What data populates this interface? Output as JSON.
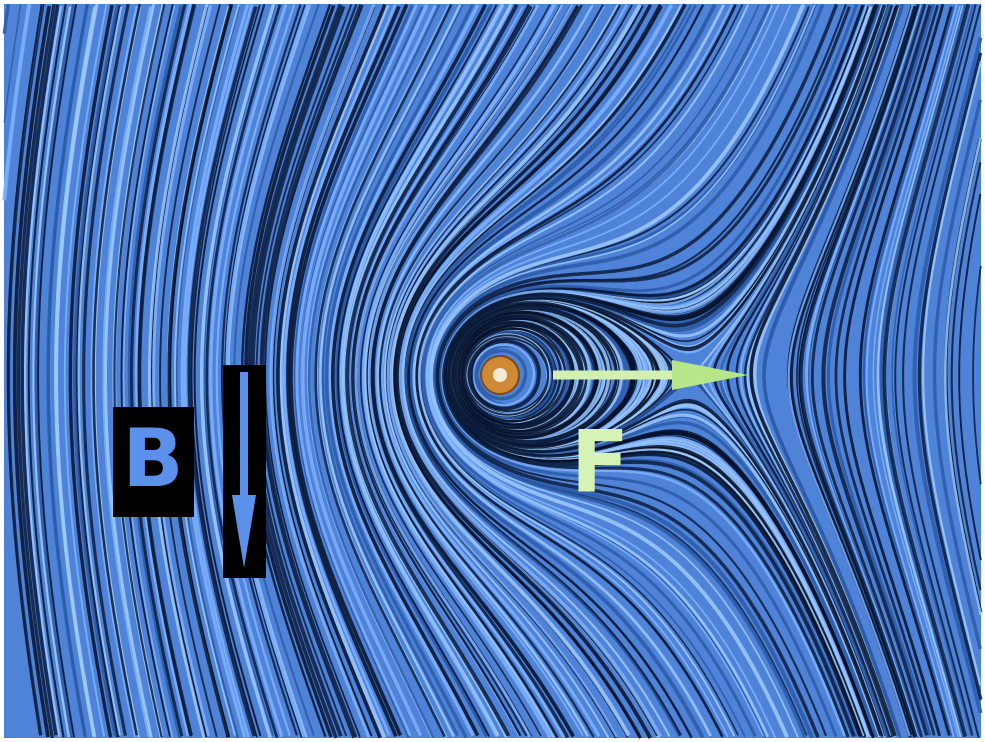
{
  "labels": {
    "field": "B",
    "force": "F"
  }
}
